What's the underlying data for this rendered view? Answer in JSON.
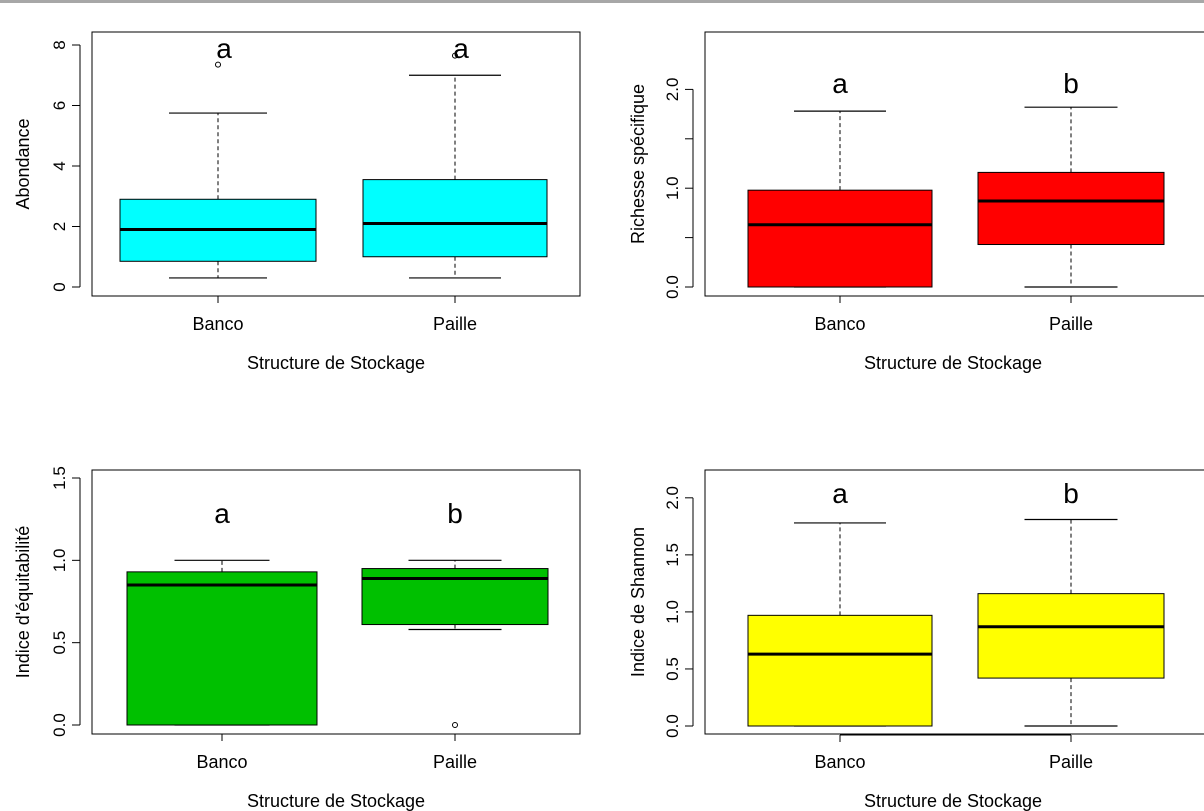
{
  "chart_data": [
    {
      "type": "boxplot",
      "xlabel": "Structure de Stockage",
      "ylabel": "Abondance",
      "ylim": [
        0,
        8
      ],
      "yticks": [
        "0",
        "2",
        "4",
        "6",
        "8"
      ],
      "categories": [
        "Banco",
        "Paille"
      ],
      "box_color": "#00ffff",
      "boxes": [
        {
          "category": "Banco",
          "whisker_low": 0.3,
          "q1": 0.85,
          "median": 1.9,
          "q3": 2.9,
          "whisker_high": 5.75,
          "outliers": [
            7.35
          ],
          "letter": "a"
        },
        {
          "category": "Paille",
          "whisker_low": 0.3,
          "q1": 1.0,
          "median": 2.1,
          "q3": 3.55,
          "whisker_high": 7.0,
          "outliers": [
            7.65
          ],
          "letter": "a"
        }
      ]
    },
    {
      "type": "boxplot",
      "xlabel": "Structure de Stockage",
      "ylabel": "Richesse spécifique",
      "ylim": [
        0,
        2.5
      ],
      "yticks": [
        "0.0",
        "1.0",
        "2.0"
      ],
      "categories": [
        "Banco",
        "Paille"
      ],
      "box_color": "#ff0000",
      "boxes": [
        {
          "category": "Banco",
          "whisker_low": 0.0,
          "q1": 0.0,
          "median": 0.63,
          "q3": 0.98,
          "whisker_high": 1.78,
          "outliers": [],
          "letter": "a"
        },
        {
          "category": "Paille",
          "whisker_low": 0.0,
          "q1": 0.43,
          "median": 0.87,
          "q3": 1.16,
          "whisker_high": 1.82,
          "outliers": [],
          "letter": "b"
        }
      ]
    },
    {
      "type": "boxplot",
      "xlabel": "Structure de Stockage",
      "ylabel": "Indice d'équitabilité",
      "ylim": [
        0,
        1.5
      ],
      "yticks": [
        "0.0",
        "0.5",
        "1.0",
        "1.5"
      ],
      "categories": [
        "Banco",
        "Paille"
      ],
      "box_color": "#00c000",
      "boxes": [
        {
          "category": "Banco",
          "whisker_low": 0.0,
          "q1": 0.0,
          "median": 0.85,
          "q3": 0.93,
          "whisker_high": 1.0,
          "outliers": [],
          "letter": "a"
        },
        {
          "category": "Paille",
          "whisker_low": 0.58,
          "q1": 0.61,
          "median": 0.89,
          "q3": 0.95,
          "whisker_high": 1.0,
          "outliers": [
            0.0
          ],
          "letter": "b"
        }
      ]
    },
    {
      "type": "boxplot",
      "xlabel": "Structure de Stockage",
      "ylabel": "Indice de Shannon",
      "ylim": [
        0,
        2.2
      ],
      "yticks": [
        "0.0",
        "0.5",
        "1.0",
        "1.5",
        "2.0"
      ],
      "categories": [
        "Banco",
        "Paille"
      ],
      "box_color": "#ffff00",
      "boxes": [
        {
          "category": "Banco",
          "whisker_low": 0.0,
          "q1": 0.0,
          "median": 0.63,
          "q3": 0.97,
          "whisker_high": 1.78,
          "outliers": [],
          "letter": "a"
        },
        {
          "category": "Paille",
          "whisker_low": 0.0,
          "q1": 0.42,
          "median": 0.87,
          "q3": 1.16,
          "whisker_high": 1.81,
          "outliers": [],
          "letter": "b"
        }
      ]
    }
  ]
}
